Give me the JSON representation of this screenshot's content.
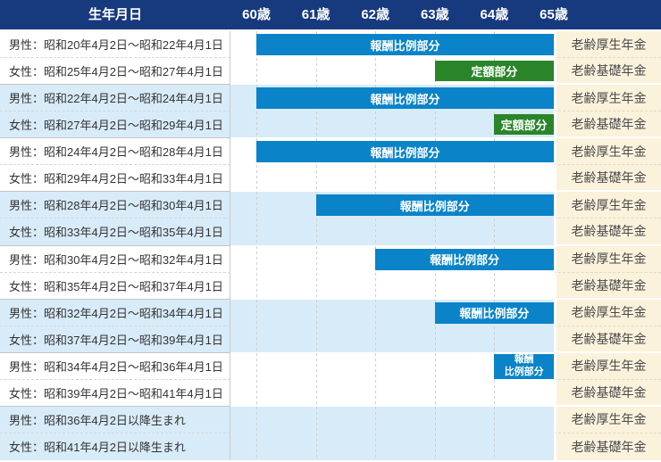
{
  "colors": {
    "header_bg": "#17397E",
    "earnings_bar": "#0A83C8",
    "fixed_bar": "#2A852A",
    "row_shade": "#D8EBF8",
    "pension_col_bg": "#FBF2DC",
    "grid_line": "#CFCFCF"
  },
  "chart_data": {
    "type": "bar",
    "variant": "gantt-timeline",
    "title": "生年月日",
    "x_ticks": [
      "60歳",
      "61歳",
      "62歳",
      "63歳",
      "64歳",
      "65歳"
    ],
    "x_range": [
      60,
      65
    ],
    "x_unit": "歳",
    "grid": "vertical-dashed",
    "bar_kinds": {
      "earnings": "報酬比例部分",
      "fixed": "定額部分"
    },
    "rows": [
      {
        "birth": "男性：昭和20年4月2日～昭和22年4月1日",
        "pension": "老齢厚生年金",
        "bar": {
          "label": "報酬比例部分",
          "kind": "earnings",
          "start": 60,
          "end": 65
        }
      },
      {
        "birth": "女性：昭和25年4月2日～昭和27年4月1日",
        "pension": "老齢基礎年金",
        "bar": {
          "label": "定額部分",
          "kind": "fixed",
          "start": 63,
          "end": 65
        }
      },
      {
        "birth": "男性：昭和22年4月2日～昭和24年4月1日",
        "pension": "老齢厚生年金",
        "bar": {
          "label": "報酬比例部分",
          "kind": "earnings",
          "start": 60,
          "end": 65
        }
      },
      {
        "birth": "女性：昭和27年4月2日～昭和29年4月1日",
        "pension": "老齢基礎年金",
        "bar": {
          "label": "定額部分",
          "kind": "fixed",
          "start": 64,
          "end": 65
        }
      },
      {
        "birth": "男性：昭和24年4月2日～昭和28年4月1日",
        "pension": "老齢厚生年金",
        "bar": {
          "label": "報酬比例部分",
          "kind": "earnings",
          "start": 60,
          "end": 65
        }
      },
      {
        "birth": "女性：昭和29年4月2日～昭和33年4月1日",
        "pension": "老齢基礎年金",
        "bar": null
      },
      {
        "birth": "男性：昭和28年4月2日～昭和30年4月1日",
        "pension": "老齢厚生年金",
        "bar": {
          "label": "報酬比例部分",
          "kind": "earnings",
          "start": 61,
          "end": 65
        }
      },
      {
        "birth": "女性：昭和33年4月2日～昭和35年4月1日",
        "pension": "老齢基礎年金",
        "bar": null
      },
      {
        "birth": "男性：昭和30年4月2日～昭和32年4月1日",
        "pension": "老齢厚生年金",
        "bar": {
          "label": "報酬比例部分",
          "kind": "earnings",
          "start": 62,
          "end": 65
        }
      },
      {
        "birth": "女性：昭和35年4月2日～昭和37年4月1日",
        "pension": "老齢基礎年金",
        "bar": null
      },
      {
        "birth": "男性：昭和32年4月2日～昭和34年4月1日",
        "pension": "老齢厚生年金",
        "bar": {
          "label": "報酬比例部分",
          "kind": "earnings",
          "start": 63,
          "end": 65
        }
      },
      {
        "birth": "女性：昭和37年4月2日～昭和39年4月1日",
        "pension": "老齢基礎年金",
        "bar": null
      },
      {
        "birth": "男性：昭和34年4月2日～昭和36年4月1日",
        "pension": "老齢厚生年金",
        "bar": {
          "label": "報酬比例部分",
          "kind": "earnings",
          "start": 64,
          "end": 65,
          "lines": [
            "報酬",
            "比例部分"
          ]
        }
      },
      {
        "birth": "女性：昭和39年4月2日～昭和41年4月1日",
        "pension": "老齢基礎年金",
        "bar": null
      },
      {
        "birth": "男性：昭和36年4月2日以降生まれ",
        "pension": "老齢厚生年金",
        "bar": null
      },
      {
        "birth": "女性：昭和41年4月2日以降生まれ",
        "pension": "老齢基礎年金",
        "bar": null
      }
    ]
  }
}
